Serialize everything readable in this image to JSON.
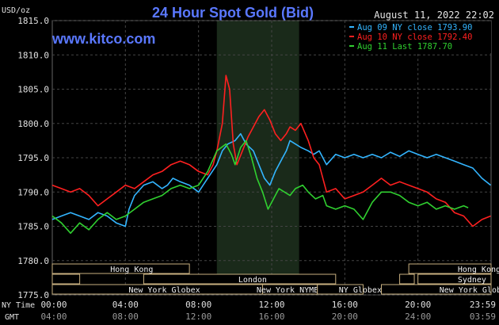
{
  "chart_data": {
    "type": "line",
    "title": "24 Hour Spot Gold (Bid)",
    "ylabel": "USD/oz",
    "timestamp": "August 11, 2022 22:02",
    "watermark": "www.kitco.com",
    "ylim": [
      1775,
      1815
    ],
    "y_ticks": [
      "1815.0",
      "1810.0",
      "1805.0",
      "1800.0",
      "1795.0",
      "1790.0",
      "1785.0",
      "1780.0",
      "1775.0"
    ],
    "x_range_hours": [
      0,
      24
    ],
    "x_ticks_ny": [
      "00:00",
      "04:00",
      "08:00",
      "12:00",
      "16:00",
      "20:00",
      "23:59"
    ],
    "x_ticks_gmt": [
      "04:00",
      "08:00",
      "12:00",
      "16:00",
      "20:00",
      "24:00",
      "03:59"
    ],
    "x_row_labels": [
      "NY Time",
      "GMT"
    ],
    "grid": true,
    "legend_position": "top-right",
    "highlight_hours": [
      9,
      13.5
    ],
    "series": [
      {
        "name": "Aug 09 NY close 1793.90",
        "color": "#33b5ff",
        "points": [
          [
            0,
            1786.0
          ],
          [
            0.5,
            1786.5
          ],
          [
            1,
            1787.0
          ],
          [
            1.5,
            1786.5
          ],
          [
            2,
            1786.0
          ],
          [
            2.5,
            1787.0
          ],
          [
            3,
            1786.5
          ],
          [
            3.5,
            1785.5
          ],
          [
            4,
            1785.0
          ],
          [
            4.2,
            1787.5
          ],
          [
            4.5,
            1789.5
          ],
          [
            5,
            1791.0
          ],
          [
            5.5,
            1791.5
          ],
          [
            6,
            1790.5
          ],
          [
            6.3,
            1791.0
          ],
          [
            6.6,
            1792.0
          ],
          [
            7,
            1791.5
          ],
          [
            7.5,
            1791.0
          ],
          [
            8,
            1790.0
          ],
          [
            8.5,
            1792.0
          ],
          [
            9,
            1794.0
          ],
          [
            9.3,
            1796.0
          ],
          [
            9.6,
            1797.0
          ],
          [
            10,
            1797.5
          ],
          [
            10.3,
            1798.5
          ],
          [
            10.6,
            1797.0
          ],
          [
            11,
            1796.0
          ],
          [
            11.3,
            1794.0
          ],
          [
            11.6,
            1792.0
          ],
          [
            11.9,
            1791.0
          ],
          [
            12.2,
            1793.0
          ],
          [
            12.5,
            1794.5
          ],
          [
            12.8,
            1796.0
          ],
          [
            13,
            1797.5
          ],
          [
            13.3,
            1797.0
          ],
          [
            13.6,
            1796.5
          ],
          [
            14,
            1796.0
          ],
          [
            14.3,
            1795.5
          ],
          [
            14.6,
            1796.0
          ],
          [
            15,
            1794.0
          ],
          [
            15.5,
            1795.5
          ],
          [
            16,
            1795.0
          ],
          [
            16.5,
            1795.5
          ],
          [
            17,
            1795.0
          ],
          [
            17.5,
            1795.5
          ],
          [
            18,
            1795.0
          ],
          [
            18.5,
            1795.8
          ],
          [
            19,
            1795.2
          ],
          [
            19.5,
            1796.0
          ],
          [
            20,
            1795.5
          ],
          [
            20.5,
            1795.0
          ],
          [
            21,
            1795.5
          ],
          [
            21.5,
            1795.0
          ],
          [
            22,
            1794.5
          ],
          [
            22.5,
            1794.0
          ],
          [
            23,
            1793.5
          ],
          [
            23.5,
            1792.0
          ],
          [
            23.98,
            1791.0
          ]
        ]
      },
      {
        "name": "Aug 10 NY close 1792.40",
        "color": "#ff2020",
        "points": [
          [
            0,
            1791.0
          ],
          [
            0.5,
            1790.5
          ],
          [
            1,
            1790.0
          ],
          [
            1.5,
            1790.5
          ],
          [
            2,
            1789.5
          ],
          [
            2.5,
            1788.0
          ],
          [
            3,
            1789.0
          ],
          [
            3.5,
            1790.0
          ],
          [
            4,
            1791.0
          ],
          [
            4.5,
            1790.5
          ],
          [
            5,
            1791.5
          ],
          [
            5.5,
            1792.5
          ],
          [
            6,
            1793.0
          ],
          [
            6.5,
            1794.0
          ],
          [
            7,
            1794.5
          ],
          [
            7.5,
            1794.0
          ],
          [
            8,
            1793.0
          ],
          [
            8.5,
            1792.5
          ],
          [
            8.8,
            1794.0
          ],
          [
            9,
            1796.0
          ],
          [
            9.3,
            1800.0
          ],
          [
            9.5,
            1807.0
          ],
          [
            9.7,
            1805.0
          ],
          [
            9.9,
            1797.0
          ],
          [
            10.1,
            1794.0
          ],
          [
            10.4,
            1796.0
          ],
          [
            10.7,
            1798.0
          ],
          [
            11,
            1799.5
          ],
          [
            11.3,
            1801.0
          ],
          [
            11.6,
            1802.0
          ],
          [
            11.9,
            1800.5
          ],
          [
            12.2,
            1798.5
          ],
          [
            12.5,
            1797.5
          ],
          [
            12.8,
            1798.5
          ],
          [
            13,
            1799.5
          ],
          [
            13.3,
            1799.0
          ],
          [
            13.6,
            1800.0
          ],
          [
            14,
            1797.5
          ],
          [
            14.3,
            1795.0
          ],
          [
            14.6,
            1794.0
          ],
          [
            15,
            1790.0
          ],
          [
            15.5,
            1790.5
          ],
          [
            16,
            1789.0
          ],
          [
            16.5,
            1789.5
          ],
          [
            17,
            1790.0
          ],
          [
            17.5,
            1791.0
          ],
          [
            18,
            1792.0
          ],
          [
            18.5,
            1791.0
          ],
          [
            19,
            1791.5
          ],
          [
            19.5,
            1791.0
          ],
          [
            20,
            1790.5
          ],
          [
            20.5,
            1790.0
          ],
          [
            21,
            1789.0
          ],
          [
            21.5,
            1788.5
          ],
          [
            22,
            1787.0
          ],
          [
            22.5,
            1786.5
          ],
          [
            23,
            1785.0
          ],
          [
            23.5,
            1786.0
          ],
          [
            23.98,
            1786.5
          ]
        ]
      },
      {
        "name": "Aug 11 Last 1787.70",
        "color": "#30d030",
        "points": [
          [
            0,
            1786.5
          ],
          [
            0.5,
            1785.5
          ],
          [
            1,
            1784.0
          ],
          [
            1.5,
            1785.5
          ],
          [
            2,
            1784.5
          ],
          [
            2.5,
            1786.0
          ],
          [
            3,
            1787.0
          ],
          [
            3.5,
            1786.0
          ],
          [
            4,
            1786.5
          ],
          [
            4.5,
            1787.5
          ],
          [
            5,
            1788.5
          ],
          [
            5.5,
            1789.0
          ],
          [
            6,
            1789.5
          ],
          [
            6.5,
            1790.5
          ],
          [
            7,
            1791.0
          ],
          [
            7.5,
            1790.5
          ],
          [
            8,
            1791.0
          ],
          [
            8.5,
            1793.0
          ],
          [
            9,
            1796.0
          ],
          [
            9.5,
            1797.0
          ],
          [
            9.8,
            1795.5
          ],
          [
            10,
            1794.0
          ],
          [
            10.3,
            1796.5
          ],
          [
            10.6,
            1797.5
          ],
          [
            10.9,
            1795.0
          ],
          [
            11.2,
            1792.0
          ],
          [
            11.5,
            1790.0
          ],
          [
            11.8,
            1787.5
          ],
          [
            12.1,
            1789.0
          ],
          [
            12.4,
            1790.5
          ],
          [
            12.7,
            1790.0
          ],
          [
            13,
            1789.5
          ],
          [
            13.3,
            1790.5
          ],
          [
            13.7,
            1791.0
          ],
          [
            14,
            1790.0
          ],
          [
            14.4,
            1789.0
          ],
          [
            14.8,
            1789.5
          ],
          [
            15,
            1788.0
          ],
          [
            15.5,
            1787.5
          ],
          [
            16,
            1788.0
          ],
          [
            16.5,
            1787.5
          ],
          [
            17,
            1786.0
          ],
          [
            17.5,
            1788.5
          ],
          [
            18,
            1790.0
          ],
          [
            18.5,
            1790.0
          ],
          [
            19,
            1789.5
          ],
          [
            19.5,
            1788.5
          ],
          [
            20,
            1788.0
          ],
          [
            20.5,
            1788.5
          ],
          [
            21,
            1787.5
          ],
          [
            21.5,
            1788.0
          ],
          [
            22,
            1787.5
          ],
          [
            22.5,
            1788.0
          ],
          [
            22.75,
            1787.7
          ]
        ]
      }
    ],
    "sessions": [
      {
        "name": "Hong Kong",
        "start": 0,
        "end": 7.5,
        "row": 1,
        "label_pos": 3.0
      },
      {
        "name": "",
        "start": 0,
        "end": 1.5,
        "row": 2,
        "label_pos": 0
      },
      {
        "name": "London",
        "start": 5.0,
        "end": 15.5,
        "row": 2,
        "label_pos": 10.0
      },
      {
        "name": "New York Globex",
        "start": 0,
        "end": 11.5,
        "row": 3,
        "label_pos": 4.0
      },
      {
        "name": "New York NYMEX",
        "start": 11.5,
        "end": 14.5,
        "row": 3,
        "label_pos": 11.0
      },
      {
        "name": "NY Globex",
        "start": 14.5,
        "end": 17.0,
        "row": 3,
        "label_pos": 15.5
      },
      {
        "name": "Hong Kong",
        "start": 19.5,
        "end": 24,
        "row": 1,
        "label_pos": 22.0
      },
      {
        "name": "",
        "start": 19.0,
        "end": 19.8,
        "row": 2,
        "label_pos": 0
      },
      {
        "name": "Sydney",
        "start": 20.0,
        "end": 24,
        "row": 2,
        "label_pos": 22.0
      },
      {
        "name": "New York Globex",
        "start": 18.0,
        "end": 24,
        "row": 3,
        "label_pos": 21.0
      }
    ]
  }
}
